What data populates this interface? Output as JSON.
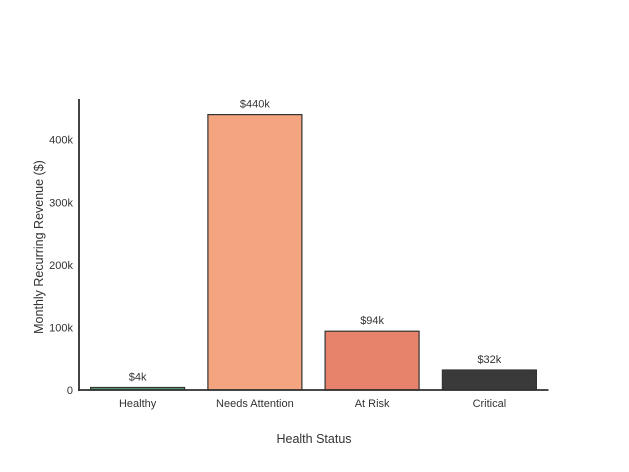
{
  "chart_data": {
    "type": "bar",
    "title": "",
    "xlabel": "Health Status",
    "ylabel": "Monthly Recurring Revenue ($)",
    "categories": [
      "Healthy",
      "Needs Attention",
      "At Risk",
      "Critical"
    ],
    "values": [
      4000,
      440000,
      94000,
      32000
    ],
    "value_labels": [
      "$4k",
      "$440k",
      "$94k",
      "$32k"
    ],
    "bar_colors": [
      "#569d72",
      "#f4a57f",
      "#e8836b",
      "#3a3a3a"
    ],
    "bar_border_color": "#333333",
    "axis_color": "#2f2f2f",
    "text_color": "#333333",
    "ylim": [
      0,
      465000
    ],
    "yticks": [
      0,
      100000,
      200000,
      300000,
      400000
    ],
    "ytick_labels": [
      "0",
      "100k",
      "200k",
      "300k",
      "400k"
    ],
    "grid": false,
    "legend": "none",
    "background": "#ffffff"
  }
}
